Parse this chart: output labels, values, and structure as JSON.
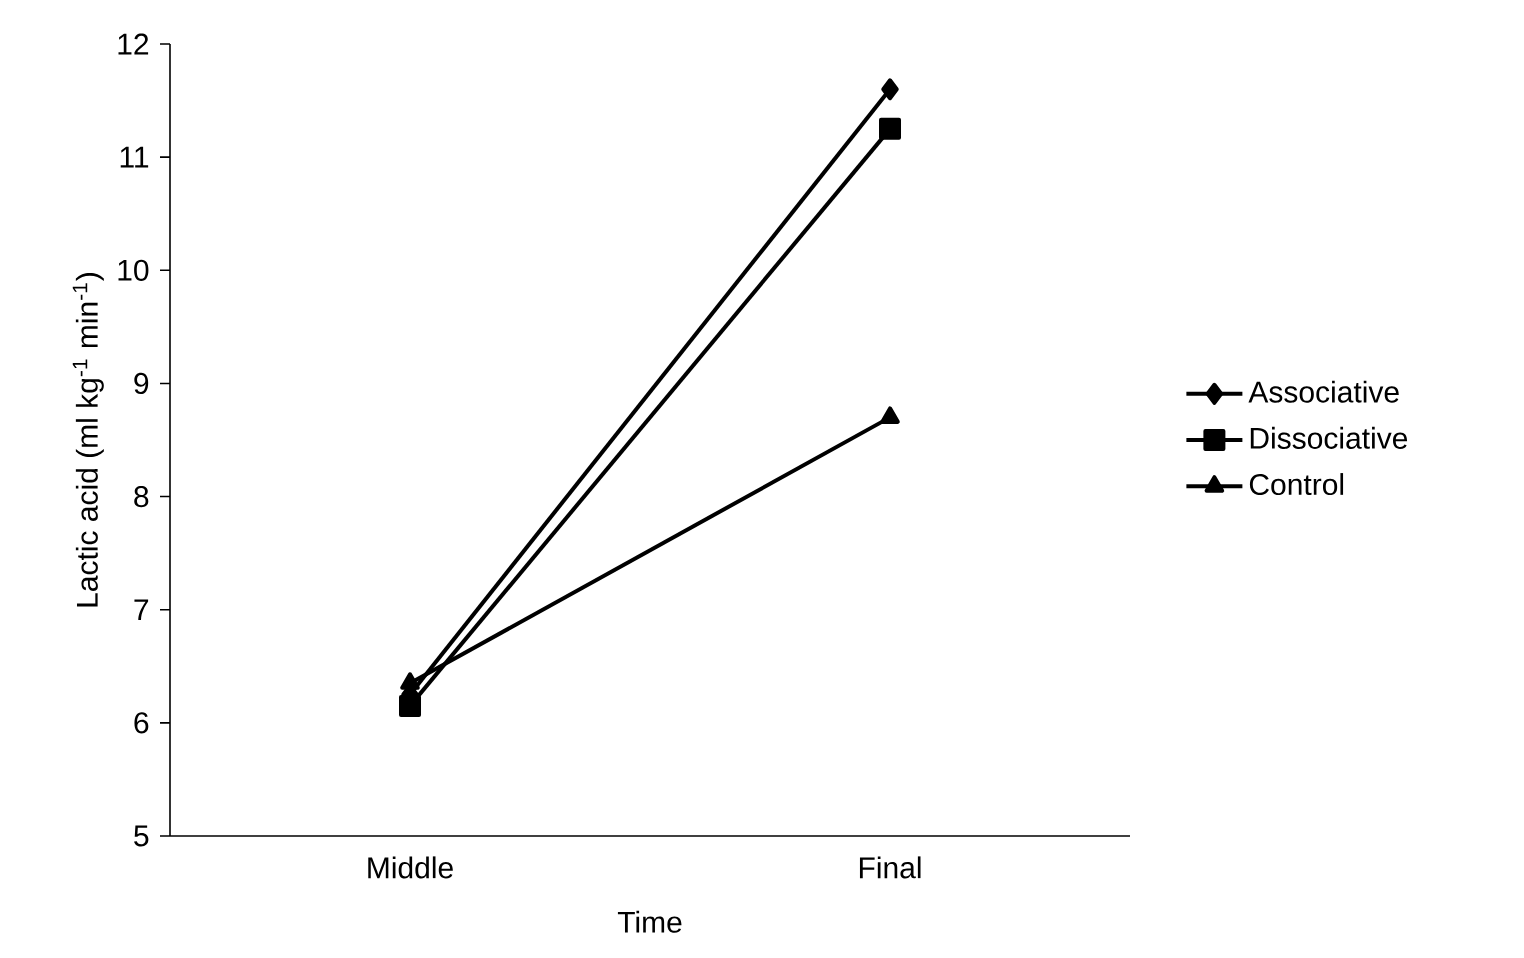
{
  "chart_data": {
    "type": "line",
    "xlabel": "Time",
    "ylabel": "Lactic acid (ml kg$^{-1}$ min$^{-1}$)",
    "categories": [
      "Middle",
      "Final"
    ],
    "series": [
      {
        "name": "Associative",
        "color": "#000000",
        "marker": "diamond",
        "values": [
          6.25,
          11.6
        ]
      },
      {
        "name": "Dissociative",
        "color": "#000000",
        "marker": "square",
        "values": [
          6.15,
          11.25
        ]
      },
      {
        "name": "Control",
        "color": "#000000",
        "marker": "triangle",
        "values": [
          6.35,
          8.7
        ]
      }
    ],
    "ylim": [
      5,
      12
    ],
    "yticks": [
      5,
      6,
      7,
      8,
      9,
      10,
      11,
      12
    ],
    "grid": false,
    "legend": "right",
    "line_style": "solid"
  }
}
